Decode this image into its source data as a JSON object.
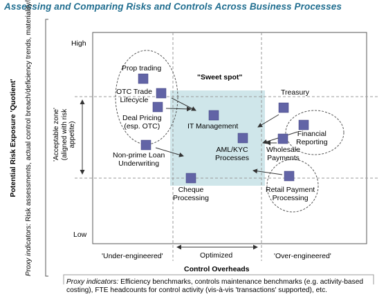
{
  "title": "Assessing and Comparing Risks and Controls Across Business Processes",
  "y_axis": {
    "title": "Potential Risk Exposure 'Quotient'",
    "proxy_prefix": "Proxy indicators:",
    "proxy_text": " Risk assessments, actual control breach/deficiency trends, materiality/likelihood of scenarios (incl. reputation risk & business risk)",
    "high": "High",
    "low": "Low",
    "acceptable_zone": "'Acceptable zone'",
    "acceptable_zone_sub1": "(aligned with risk",
    "acceptable_zone_sub2": "appetite)"
  },
  "x_axis": {
    "title": "Control Overheads",
    "under": "'Under-engineered'",
    "optimized": "Optimized",
    "over": "'Over-engineered'",
    "proxy_prefix": "Proxy indicators:",
    "proxy_text": " Efficiency benchmarks, controls maintenance benchmarks (e.g. activity-based costing), FTE headcounts for control activity (vis-à-vis 'transactions' supported), etc."
  },
  "sweet_spot": "\"Sweet spot\"",
  "processes": {
    "prop_trading": "Prop trading",
    "otc_trade_1": "OTC Trade",
    "otc_trade_2": "Lifecycle",
    "deal_pricing_1": "Deal Pricing",
    "deal_pricing_2": "(esp. OTC)",
    "it_management": "IT Management",
    "nonprime_1": "Non-prime Loan",
    "nonprime_2": "Underwriting",
    "aml_1": "AML/KYC",
    "aml_2": "Processes",
    "cheque_1": "Cheque",
    "cheque_2": "Processing",
    "treasury": "Treasury",
    "financial_1": "Financial",
    "financial_2": "Reporting",
    "wholesale_1": "Wholesale",
    "wholesale_2": "Payments",
    "retail_1": "Retail Payment",
    "retail_2": "Processing"
  },
  "colors": {
    "title": "#1f6d8f",
    "sweet_spot_fill": "#cfe6ea",
    "marker": "#6264a6",
    "grid": "#9a9a9a"
  }
}
